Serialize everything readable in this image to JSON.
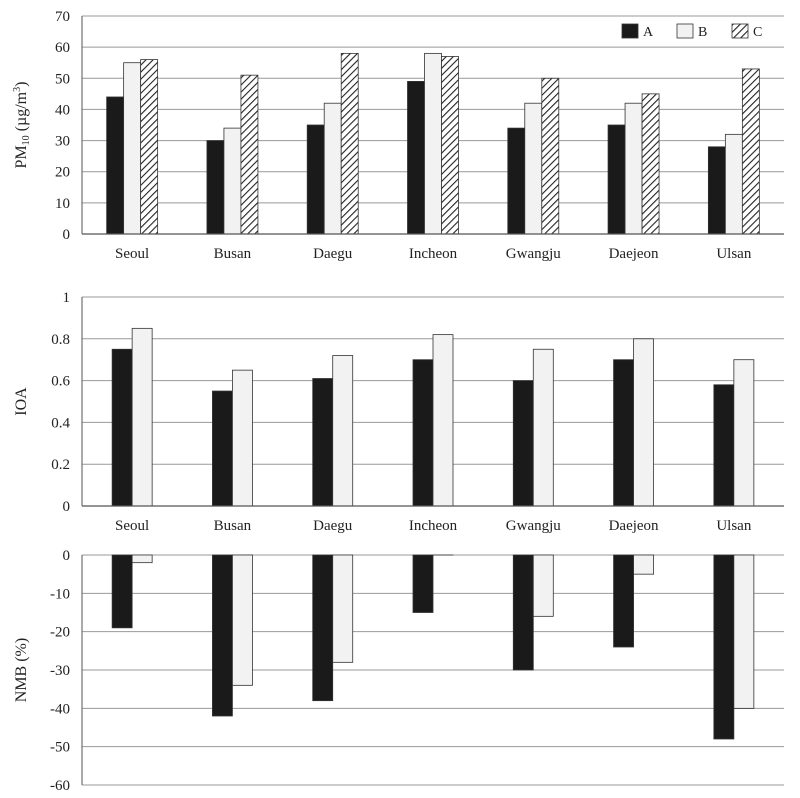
{
  "chart_data": [
    {
      "type": "bar",
      "ylabel": "PM10 (µg/m3)",
      "ylabel_parts": {
        "main": "PM",
        "sub": "10",
        "unit": " (µg/m",
        "sup": "3",
        "close": ")"
      },
      "ylim": [
        0,
        70
      ],
      "yticks": [
        0,
        10,
        20,
        30,
        40,
        50,
        60,
        70
      ],
      "grid": true,
      "legend": "top-right",
      "categories": [
        "Seoul",
        "Busan",
        "Daegu",
        "Incheon",
        "Gwangju",
        "Daejeon",
        "Ulsan"
      ],
      "series": [
        {
          "name": "A",
          "values": [
            44,
            30,
            35,
            49,
            34,
            35,
            28
          ]
        },
        {
          "name": "B",
          "values": [
            55,
            34,
            42,
            58,
            42,
            42,
            32
          ]
        },
        {
          "name": "C",
          "values": [
            56,
            51,
            58,
            57,
            50,
            45,
            53
          ]
        }
      ]
    },
    {
      "type": "bar",
      "ylabel": "IOA",
      "ylim": [
        0,
        1
      ],
      "yticks": [
        "0",
        "0.2",
        "0.4",
        "0.6",
        "0.8",
        "1"
      ],
      "grid": true,
      "categories": [
        "Seoul",
        "Busan",
        "Daegu",
        "Incheon",
        "Gwangju",
        "Daejeon",
        "Ulsan"
      ],
      "series": [
        {
          "name": "A",
          "values": [
            0.75,
            0.55,
            0.61,
            0.7,
            0.6,
            0.7,
            0.58
          ]
        },
        {
          "name": "B",
          "values": [
            0.85,
            0.65,
            0.72,
            0.82,
            0.75,
            0.8,
            0.7
          ]
        }
      ]
    },
    {
      "type": "bar",
      "ylabel": "NMB (%)",
      "ylim": [
        -60,
        0
      ],
      "yticks": [
        "0",
        "-10",
        "-20",
        "-30",
        "-40",
        "-50",
        "-60"
      ],
      "grid": true,
      "categories": [
        "Seoul",
        "Busan",
        "Daegu",
        "Incheon",
        "Gwangju",
        "Daejeon",
        "Ulsan"
      ],
      "series": [
        {
          "name": "A",
          "values": [
            -19,
            -42,
            -38,
            -15,
            -30,
            -24,
            -48
          ]
        },
        {
          "name": "B",
          "values": [
            -2,
            -34,
            -28,
            0,
            -16,
            -5,
            -40
          ]
        }
      ]
    }
  ],
  "colors": {
    "A": "#1a1a1a",
    "B": "#f2f2f2",
    "grid": "#999999",
    "axis": "#555555"
  }
}
